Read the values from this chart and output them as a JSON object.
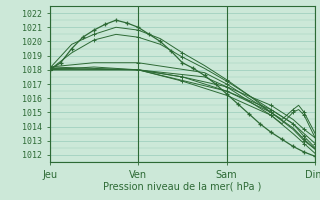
{
  "bg_color": "#cce8d8",
  "plot_bg_color": "#cce8d8",
  "grid_color": "#99ccbb",
  "line_color": "#2d6a35",
  "ylim": [
    1011.5,
    1022.5
  ],
  "yticks": [
    1012,
    1013,
    1014,
    1015,
    1016,
    1017,
    1018,
    1019,
    1020,
    1021,
    1022
  ],
  "xlabel": "Pression niveau de la mer( hPa )",
  "xtick_labels": [
    "Jeu",
    "Ven",
    "Sam",
    "Dim"
  ],
  "xtick_positions": [
    0,
    96,
    192,
    288
  ],
  "total_hours": 288,
  "lines": [
    {
      "points": [
        [
          0,
          1018.0
        ],
        [
          12,
          1018.5
        ],
        [
          24,
          1019.5
        ],
        [
          36,
          1020.3
        ],
        [
          48,
          1020.8
        ],
        [
          60,
          1021.2
        ],
        [
          72,
          1021.5
        ],
        [
          84,
          1021.3
        ],
        [
          96,
          1021.0
        ],
        [
          108,
          1020.5
        ],
        [
          120,
          1020.0
        ],
        [
          132,
          1019.3
        ],
        [
          144,
          1018.5
        ],
        [
          156,
          1018.1
        ],
        [
          168,
          1017.6
        ],
        [
          180,
          1017.0
        ],
        [
          192,
          1016.3
        ],
        [
          204,
          1015.6
        ],
        [
          216,
          1014.9
        ],
        [
          228,
          1014.2
        ],
        [
          240,
          1013.6
        ],
        [
          252,
          1013.1
        ],
        [
          264,
          1012.6
        ],
        [
          276,
          1012.2
        ],
        [
          288,
          1011.9
        ]
      ],
      "marked": true
    },
    {
      "points": [
        [
          0,
          1018.0
        ],
        [
          24,
          1019.2
        ],
        [
          48,
          1020.1
        ],
        [
          72,
          1020.5
        ],
        [
          96,
          1020.3
        ],
        [
          120,
          1019.8
        ],
        [
          144,
          1018.9
        ],
        [
          168,
          1018.1
        ],
        [
          192,
          1017.2
        ],
        [
          216,
          1016.2
        ],
        [
          240,
          1015.2
        ],
        [
          264,
          1014.2
        ],
        [
          276,
          1013.3
        ],
        [
          288,
          1012.5
        ]
      ],
      "marked": false
    },
    {
      "points": [
        [
          0,
          1018.1
        ],
        [
          24,
          1019.8
        ],
        [
          48,
          1020.5
        ],
        [
          72,
          1021.0
        ],
        [
          96,
          1020.8
        ],
        [
          120,
          1020.2
        ],
        [
          144,
          1019.2
        ],
        [
          168,
          1018.3
        ],
        [
          192,
          1017.3
        ],
        [
          216,
          1016.2
        ],
        [
          240,
          1015.0
        ],
        [
          264,
          1013.9
        ],
        [
          276,
          1013.1
        ],
        [
          288,
          1012.4
        ]
      ],
      "marked": false
    },
    {
      "points": [
        [
          0,
          1018.2
        ],
        [
          96,
          1018.0
        ],
        [
          192,
          1016.5
        ],
        [
          240,
          1015.2
        ],
        [
          264,
          1014.2
        ],
        [
          276,
          1013.5
        ],
        [
          288,
          1012.8
        ]
      ],
      "marked": false
    },
    {
      "points": [
        [
          0,
          1018.1
        ],
        [
          96,
          1018.0
        ],
        [
          144,
          1017.5
        ],
        [
          192,
          1016.8
        ],
        [
          240,
          1015.5
        ],
        [
          264,
          1014.5
        ],
        [
          276,
          1013.8
        ],
        [
          288,
          1013.2
        ]
      ],
      "marked": false
    },
    {
      "points": [
        [
          0,
          1018.0
        ],
        [
          96,
          1018.0
        ],
        [
          144,
          1017.5
        ],
        [
          192,
          1016.5
        ],
        [
          240,
          1015.0
        ],
        [
          264,
          1013.8
        ],
        [
          276,
          1013.0
        ],
        [
          288,
          1012.4
        ]
      ],
      "marked": false
    },
    {
      "points": [
        [
          0,
          1018.0
        ],
        [
          96,
          1018.0
        ],
        [
          144,
          1017.2
        ],
        [
          192,
          1016.2
        ],
        [
          240,
          1014.8
        ],
        [
          264,
          1013.5
        ],
        [
          276,
          1012.8
        ],
        [
          288,
          1012.1
        ]
      ],
      "marked": false
    },
    {
      "points": [
        [
          0,
          1018.2
        ],
        [
          48,
          1018.5
        ],
        [
          96,
          1018.5
        ],
        [
          168,
          1017.8
        ],
        [
          192,
          1017.0
        ],
        [
          216,
          1016.0
        ],
        [
          240,
          1015.0
        ],
        [
          252,
          1014.5
        ],
        [
          264,
          1015.2
        ],
        [
          270,
          1015.5
        ],
        [
          276,
          1015.0
        ],
        [
          288,
          1013.5
        ]
      ],
      "marked": false
    },
    {
      "points": [
        [
          0,
          1018.0
        ],
        [
          48,
          1018.2
        ],
        [
          96,
          1018.0
        ],
        [
          168,
          1017.5
        ],
        [
          192,
          1016.8
        ],
        [
          216,
          1015.8
        ],
        [
          240,
          1014.8
        ],
        [
          252,
          1014.2
        ],
        [
          264,
          1015.0
        ],
        [
          270,
          1015.2
        ],
        [
          276,
          1014.8
        ],
        [
          288,
          1013.2
        ]
      ],
      "marked": false
    }
  ],
  "fontsize_label": 7.0,
  "fontsize_tick": 6.0
}
